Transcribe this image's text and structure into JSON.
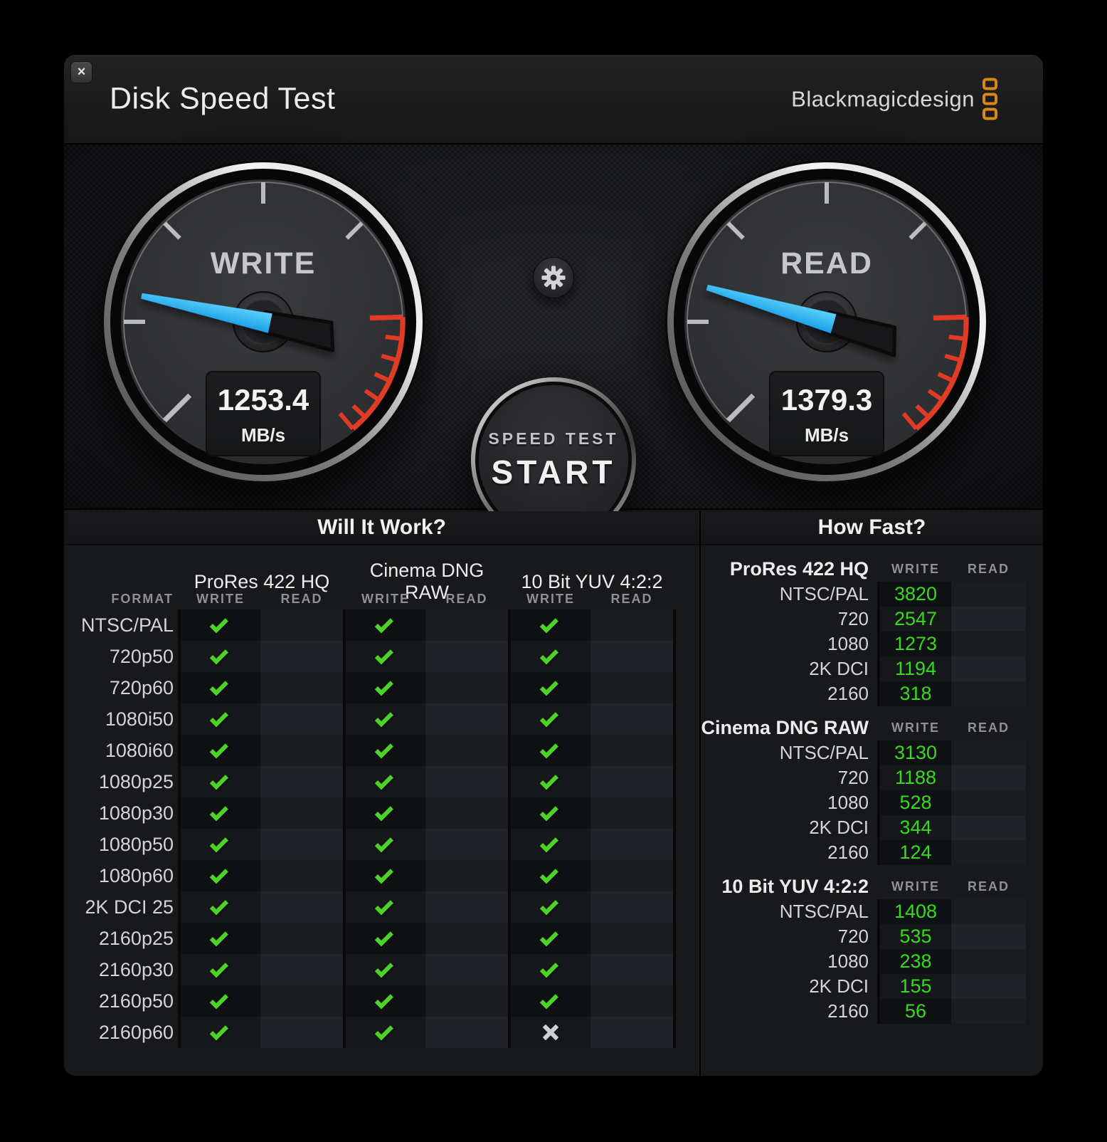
{
  "window": {
    "title": "Disk Speed Test",
    "close": "×"
  },
  "brand": {
    "logo_text": "Blackmagicdesign"
  },
  "gauges": {
    "write": {
      "label": "WRITE",
      "value": "1253.4",
      "unit": "MB/s",
      "needle_deg": 12
    },
    "read": {
      "label": "READ",
      "value": "1379.3",
      "unit": "MB/s",
      "needle_deg": 16
    }
  },
  "controls": {
    "start_button": {
      "line1": "SPEED TEST",
      "line2": "START"
    }
  },
  "will_it_work": {
    "title": "Will It Work?",
    "group_headers": [
      "ProRes 422 HQ",
      "Cinema DNG RAW",
      "10 Bit YUV 4:2:2"
    ],
    "format_header": "FORMAT",
    "sub_headers": [
      "WRITE",
      "READ",
      "WRITE",
      "READ",
      "WRITE",
      "READ"
    ],
    "rows": [
      {
        "format": "NTSC/PAL",
        "cells": [
          "check",
          "",
          "check",
          "",
          "check",
          ""
        ]
      },
      {
        "format": "720p50",
        "cells": [
          "check",
          "",
          "check",
          "",
          "check",
          ""
        ]
      },
      {
        "format": "720p60",
        "cells": [
          "check",
          "",
          "check",
          "",
          "check",
          ""
        ]
      },
      {
        "format": "1080i50",
        "cells": [
          "check",
          "",
          "check",
          "",
          "check",
          ""
        ]
      },
      {
        "format": "1080i60",
        "cells": [
          "check",
          "",
          "check",
          "",
          "check",
          ""
        ]
      },
      {
        "format": "1080p25",
        "cells": [
          "check",
          "",
          "check",
          "",
          "check",
          ""
        ]
      },
      {
        "format": "1080p30",
        "cells": [
          "check",
          "",
          "check",
          "",
          "check",
          ""
        ]
      },
      {
        "format": "1080p50",
        "cells": [
          "check",
          "",
          "check",
          "",
          "check",
          ""
        ]
      },
      {
        "format": "1080p60",
        "cells": [
          "check",
          "",
          "check",
          "",
          "check",
          ""
        ]
      },
      {
        "format": "2K DCI 25",
        "cells": [
          "check",
          "",
          "check",
          "",
          "check",
          ""
        ]
      },
      {
        "format": "2160p25",
        "cells": [
          "check",
          "",
          "check",
          "",
          "check",
          ""
        ]
      },
      {
        "format": "2160p30",
        "cells": [
          "check",
          "",
          "check",
          "",
          "check",
          ""
        ]
      },
      {
        "format": "2160p50",
        "cells": [
          "check",
          "",
          "check",
          "",
          "check",
          ""
        ]
      },
      {
        "format": "2160p60",
        "cells": [
          "check",
          "",
          "check",
          "",
          "cross",
          ""
        ]
      }
    ]
  },
  "how_fast": {
    "title": "How Fast?",
    "sections": [
      {
        "name": "ProRes 422 HQ",
        "write_header": "WRITE",
        "read_header": "READ",
        "rows": [
          {
            "label": "NTSC/PAL",
            "write": "3820",
            "read": ""
          },
          {
            "label": "720",
            "write": "2547",
            "read": ""
          },
          {
            "label": "1080",
            "write": "1273",
            "read": ""
          },
          {
            "label": "2K DCI",
            "write": "1194",
            "read": ""
          },
          {
            "label": "2160",
            "write": "318",
            "read": ""
          }
        ]
      },
      {
        "name": "Cinema DNG RAW",
        "write_header": "WRITE",
        "read_header": "READ",
        "rows": [
          {
            "label": "NTSC/PAL",
            "write": "3130",
            "read": ""
          },
          {
            "label": "720",
            "write": "1188",
            "read": ""
          },
          {
            "label": "1080",
            "write": "528",
            "read": ""
          },
          {
            "label": "2K DCI",
            "write": "344",
            "read": ""
          },
          {
            "label": "2160",
            "write": "124",
            "read": ""
          }
        ]
      },
      {
        "name": "10 Bit YUV 4:2:2",
        "write_header": "WRITE",
        "read_header": "READ",
        "rows": [
          {
            "label": "NTSC/PAL",
            "write": "1408",
            "read": ""
          },
          {
            "label": "720",
            "write": "535",
            "read": ""
          },
          {
            "label": "1080",
            "write": "238",
            "read": ""
          },
          {
            "label": "2K DCI",
            "write": "155",
            "read": ""
          },
          {
            "label": "2160",
            "write": "56",
            "read": ""
          }
        ]
      }
    ]
  },
  "colors": {
    "accent_green": "#37da1d",
    "check_green": "#4cd228",
    "needle_blue": "#2fb9f5",
    "redline_red": "#e23b25",
    "logo_orange": "#d9861a"
  }
}
